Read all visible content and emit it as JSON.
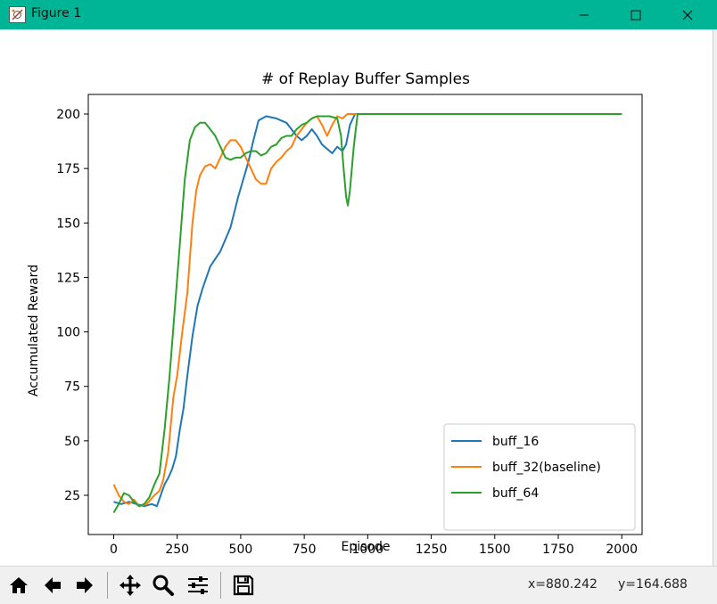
{
  "window": {
    "title": "Figure 1",
    "icon": "matplotlib-figure-icon"
  },
  "chart_data": {
    "type": "line",
    "title": "# of Replay Buffer Samples",
    "xlabel": "Episode",
    "ylabel": "Accumulated Reward",
    "xlim": [
      -100,
      2080
    ],
    "ylim": [
      7,
      209
    ],
    "xticks": [
      0,
      250,
      500,
      750,
      1000,
      1250,
      1500,
      1750,
      2000
    ],
    "yticks": [
      25,
      50,
      75,
      100,
      125,
      150,
      175,
      200
    ],
    "legend": "lower-right",
    "grid": false,
    "series": [
      {
        "name": "buff_16",
        "color": "#1f77b4",
        "points": [
          [
            0,
            22
          ],
          [
            30,
            21
          ],
          [
            60,
            22
          ],
          [
            90,
            21
          ],
          [
            120,
            20
          ],
          [
            150,
            21
          ],
          [
            170,
            20
          ],
          [
            185,
            25
          ],
          [
            200,
            30
          ],
          [
            215,
            33
          ],
          [
            230,
            37
          ],
          [
            245,
            43
          ],
          [
            260,
            55
          ],
          [
            275,
            65
          ],
          [
            290,
            80
          ],
          [
            310,
            98
          ],
          [
            330,
            112
          ],
          [
            350,
            120
          ],
          [
            380,
            130
          ],
          [
            420,
            137
          ],
          [
            460,
            148
          ],
          [
            490,
            162
          ],
          [
            510,
            170
          ],
          [
            530,
            178
          ],
          [
            550,
            188
          ],
          [
            570,
            197
          ],
          [
            600,
            199
          ],
          [
            640,
            198
          ],
          [
            680,
            196
          ],
          [
            700,
            193
          ],
          [
            720,
            190
          ],
          [
            740,
            188
          ],
          [
            760,
            190
          ],
          [
            780,
            193
          ],
          [
            800,
            190
          ],
          [
            820,
            186
          ],
          [
            840,
            184
          ],
          [
            860,
            182
          ],
          [
            880,
            185
          ],
          [
            900,
            183
          ],
          [
            915,
            186
          ],
          [
            930,
            195
          ],
          [
            950,
            200
          ],
          [
            2000,
            200
          ]
        ]
      },
      {
        "name": "buff_32(baseline)",
        "color": "#ff7f0e",
        "points": [
          [
            0,
            30
          ],
          [
            20,
            25
          ],
          [
            40,
            22
          ],
          [
            60,
            21
          ],
          [
            80,
            23
          ],
          [
            100,
            20
          ],
          [
            130,
            21
          ],
          [
            160,
            25
          ],
          [
            180,
            27
          ],
          [
            195,
            32
          ],
          [
            215,
            45
          ],
          [
            235,
            70
          ],
          [
            250,
            80
          ],
          [
            270,
            100
          ],
          [
            290,
            118
          ],
          [
            310,
            150
          ],
          [
            325,
            165
          ],
          [
            340,
            172
          ],
          [
            360,
            176
          ],
          [
            380,
            177
          ],
          [
            400,
            175
          ],
          [
            420,
            180
          ],
          [
            440,
            185
          ],
          [
            460,
            188
          ],
          [
            480,
            188
          ],
          [
            500,
            185
          ],
          [
            520,
            180
          ],
          [
            540,
            175
          ],
          [
            560,
            170
          ],
          [
            580,
            168
          ],
          [
            600,
            168
          ],
          [
            620,
            175
          ],
          [
            640,
            178
          ],
          [
            660,
            180
          ],
          [
            680,
            183
          ],
          [
            700,
            185
          ],
          [
            720,
            190
          ],
          [
            740,
            193
          ],
          [
            760,
            196
          ],
          [
            780,
            198
          ],
          [
            800,
            199
          ],
          [
            820,
            195
          ],
          [
            840,
            190
          ],
          [
            860,
            195
          ],
          [
            880,
            199
          ],
          [
            900,
            198
          ],
          [
            920,
            200
          ],
          [
            2000,
            200
          ]
        ]
      },
      {
        "name": "buff_64",
        "color": "#2ca02c",
        "points": [
          [
            0,
            17
          ],
          [
            20,
            21
          ],
          [
            40,
            26
          ],
          [
            60,
            25
          ],
          [
            80,
            22
          ],
          [
            100,
            20
          ],
          [
            120,
            21
          ],
          [
            140,
            24
          ],
          [
            160,
            30
          ],
          [
            180,
            35
          ],
          [
            200,
            55
          ],
          [
            220,
            80
          ],
          [
            240,
            110
          ],
          [
            260,
            140
          ],
          [
            280,
            170
          ],
          [
            300,
            188
          ],
          [
            320,
            194
          ],
          [
            340,
            196
          ],
          [
            360,
            196
          ],
          [
            380,
            193
          ],
          [
            400,
            190
          ],
          [
            420,
            185
          ],
          [
            440,
            180
          ],
          [
            460,
            179
          ],
          [
            480,
            180
          ],
          [
            500,
            180
          ],
          [
            520,
            182
          ],
          [
            540,
            183
          ],
          [
            560,
            183
          ],
          [
            580,
            181
          ],
          [
            600,
            182
          ],
          [
            620,
            185
          ],
          [
            640,
            186
          ],
          [
            660,
            189
          ],
          [
            680,
            190
          ],
          [
            700,
            190
          ],
          [
            720,
            193
          ],
          [
            740,
            195
          ],
          [
            760,
            196
          ],
          [
            780,
            198
          ],
          [
            800,
            199
          ],
          [
            850,
            199
          ],
          [
            880,
            198
          ],
          [
            895,
            190
          ],
          [
            905,
            175
          ],
          [
            915,
            162
          ],
          [
            922,
            158
          ],
          [
            930,
            165
          ],
          [
            945,
            185
          ],
          [
            960,
            200
          ],
          [
            2000,
            200
          ]
        ]
      }
    ]
  },
  "toolbar": {
    "buttons": [
      {
        "name": "home-button",
        "icon": "home-icon"
      },
      {
        "name": "back-button",
        "icon": "arrow-left-icon"
      },
      {
        "name": "forward-button",
        "icon": "arrow-right-icon"
      },
      {
        "name": "pan-button",
        "icon": "move-icon"
      },
      {
        "name": "zoom-button",
        "icon": "magnifier-icon"
      },
      {
        "name": "configure-subplots-button",
        "icon": "sliders-icon"
      },
      {
        "name": "save-button",
        "icon": "floppy-disk-icon"
      }
    ],
    "x_readout": "x=880.242",
    "y_readout": "y=164.688"
  }
}
